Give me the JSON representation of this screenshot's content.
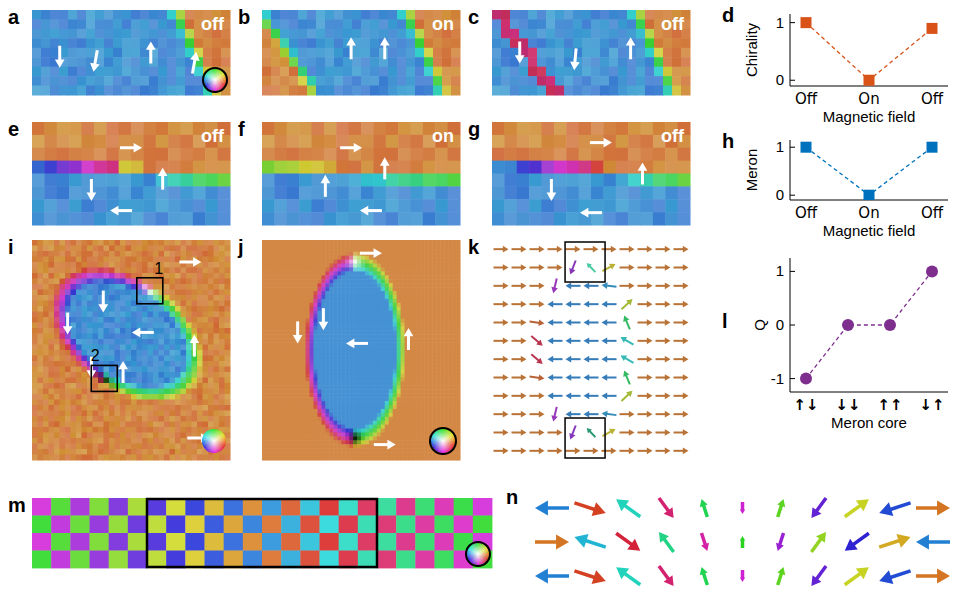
{
  "image_panels": [
    {
      "letter": "a",
      "label": "off"
    },
    {
      "letter": "b",
      "label": "on"
    },
    {
      "letter": "c",
      "label": "off"
    },
    {
      "letter": "e",
      "label": "off"
    },
    {
      "letter": "f",
      "label": "on"
    },
    {
      "letter": "g",
      "label": "off"
    },
    {
      "letter": "i",
      "boxes": [
        "1",
        "2"
      ]
    },
    {
      "letter": "j"
    },
    {
      "letter": "k"
    },
    {
      "letter": "m"
    },
    {
      "letter": "n"
    }
  ],
  "chart_letters": [
    "d",
    "h",
    "l"
  ],
  "chart_data": [
    {
      "type": "line",
      "ylabel": "Chirality",
      "xlabel": "Magnetic field",
      "categories": [
        "Off",
        "On",
        "Off"
      ],
      "values": [
        1,
        0,
        0.9
      ],
      "color": "#d95319",
      "marker": "square",
      "line_style": "dashed",
      "ylim": [
        -0.1,
        1.15
      ],
      "yticks": [
        0,
        1
      ]
    },
    {
      "type": "line",
      "ylabel": "Meron",
      "xlabel": "Magnetic field",
      "categories": [
        "Off",
        "On",
        "Off"
      ],
      "values": [
        1,
        0,
        1
      ],
      "color": "#0072bd",
      "marker": "square",
      "line_style": "dashed",
      "ylim": [
        -0.1,
        1.15
      ],
      "yticks": [
        0,
        1
      ]
    },
    {
      "type": "line",
      "ylabel": "Q",
      "xlabel": "Meron core",
      "categories": [
        "↑↓",
        "↓↓",
        "↑↑",
        "↓↑"
      ],
      "values": [
        -1,
        0,
        0,
        1
      ],
      "color": "#7e2f8e",
      "marker": "circle",
      "line_style": "dashed",
      "ylim": [
        -1.25,
        1.25
      ],
      "yticks": [
        -1,
        0,
        1
      ]
    }
  ]
}
